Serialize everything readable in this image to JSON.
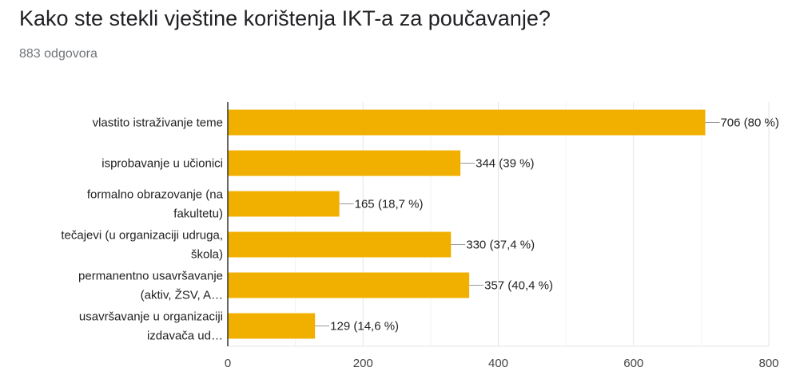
{
  "header": {
    "title": "Kako ste stekli vještine korištenja IKT-a za poučavanje?",
    "responses": "883 odgovora"
  },
  "chart_data": {
    "type": "bar",
    "orientation": "horizontal",
    "title": "Kako ste stekli vještine korištenja IKT-a za poučavanje?",
    "categories": [
      [
        "vlastito istraživanje teme"
      ],
      [
        "isprobavanje u učionici"
      ],
      [
        "formalno obrazovanje (na",
        "fakultetu)"
      ],
      [
        "tečajevi (u organizaciji udruga,",
        "škola)"
      ],
      [
        "permanentno usavršavanje",
        "(aktiv, ŽSV, A…"
      ],
      [
        "usavršavanje u organizaciji",
        "izdavača ud…"
      ]
    ],
    "values": [
      706,
      344,
      165,
      330,
      357,
      129
    ],
    "data_labels": [
      "706 (80 %)",
      "344 (39 %)",
      "165 (18,7 %)",
      "330 (37,4 %)",
      "357 (40,4 %)",
      "129 (14,6 %)"
    ],
    "xlim": [
      0,
      800
    ],
    "xticks": [
      0,
      200,
      400,
      600,
      800
    ],
    "minor_gridlines": [
      100,
      300,
      500,
      700
    ],
    "grid": true,
    "bar_color": "#f1b000",
    "xlabel": "",
    "ylabel": ""
  }
}
